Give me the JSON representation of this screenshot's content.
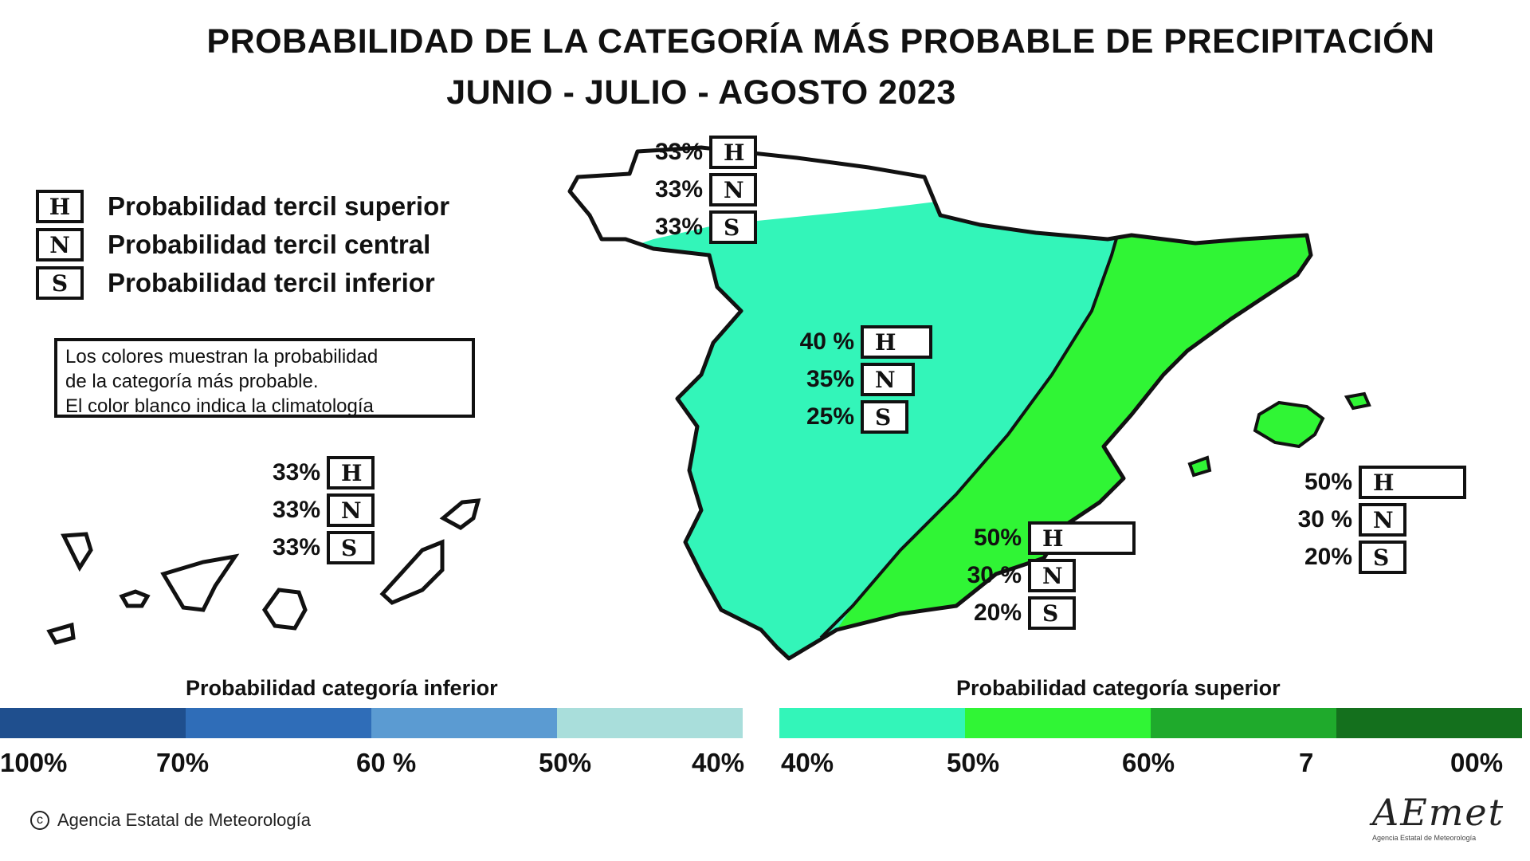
{
  "title": "PROBABILIDAD DE LA  CATEGORÍA MÁS PROBABLE DE PRECIPITACIÓN",
  "subtitle": "JUNIO - JULIO - AGOSTO 2023",
  "legend": [
    {
      "letter": "H",
      "text": "Probabilidad  tercil superior"
    },
    {
      "letter": "N",
      "text": "Probabilidad  tercil central"
    },
    {
      "letter": "S",
      "text": "Probabilidad  tercil inferior"
    }
  ],
  "note": [
    "Los colores muestran la probabilidad",
    "de la categoría más probable.",
    "El color blanco indica la climatología"
  ],
  "regions": {
    "northwest": {
      "rows": [
        {
          "letter": "H",
          "pct": "33%",
          "value": 33
        },
        {
          "letter": "N",
          "pct": "33%",
          "value": 33
        },
        {
          "letter": "S",
          "pct": "33%",
          "value": 33
        }
      ]
    },
    "central": {
      "rows": [
        {
          "letter": "H",
          "pct": "40 %",
          "value": 40
        },
        {
          "letter": "N",
          "pct": "35%",
          "value": 35
        },
        {
          "letter": "S",
          "pct": "25%",
          "value": 25
        }
      ]
    },
    "east": {
      "rows": [
        {
          "letter": "H",
          "pct": "50%",
          "value": 50
        },
        {
          "letter": "N",
          "pct": "30 %",
          "value": 30
        },
        {
          "letter": "S",
          "pct": "20%",
          "value": 20
        }
      ]
    },
    "balearic": {
      "rows": [
        {
          "letter": "H",
          "pct": "50%",
          "value": 50
        },
        {
          "letter": "N",
          "pct": "30 %",
          "value": 30
        },
        {
          "letter": "S",
          "pct": "20%",
          "value": 20
        }
      ]
    },
    "canarias": {
      "rows": [
        {
          "letter": "H",
          "pct": "33%",
          "value": 33
        },
        {
          "letter": "N",
          "pct": "33%",
          "value": 33
        },
        {
          "letter": "S",
          "pct": "33%",
          "value": 33
        }
      ]
    }
  },
  "scale_lower": {
    "title": "Probabilidad categoría inferior",
    "colors": [
      "#1f4f8e",
      "#2f6db8",
      "#5b9bd2",
      "#a9dedb"
    ],
    "ticks": [
      "100%",
      "70%",
      "60 %",
      "50%",
      "40%"
    ]
  },
  "scale_upper": {
    "title": "Probabilidad categoría superior",
    "colors": [
      "#33f5b9",
      "#30f535",
      "#1faa2c",
      "#14701d"
    ],
    "ticks": [
      "40%",
      "50%",
      "60%",
      "7",
      "00%"
    ]
  },
  "map_colors": {
    "central": "#33f5b9",
    "east": "#30f535",
    "white": "#ffffff",
    "outline": "#111111"
  },
  "copyright": "Agencia Estatal de Meteorología",
  "logo": "AEmet",
  "logo_sub": "Agencia Estatal de Meteorología"
}
